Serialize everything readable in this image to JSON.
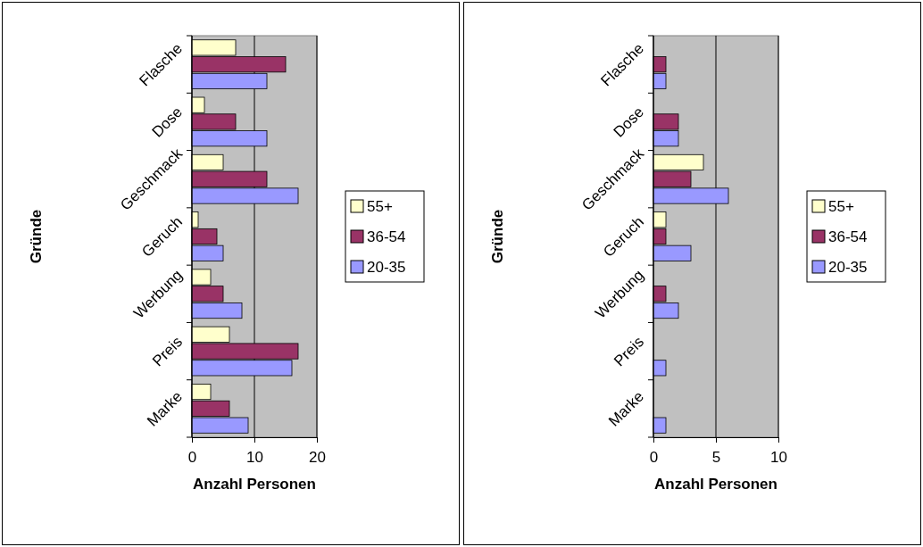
{
  "chart_data": [
    {
      "type": "bar",
      "orientation": "horizontal",
      "xlabel": "Anzahl Personen",
      "ylabel": "Gründe",
      "categories": [
        "Flasche",
        "Dose",
        "Geschmack",
        "Geruch",
        "Werbung",
        "Preis",
        "Marke"
      ],
      "series": [
        {
          "name": "20-35",
          "color": "#9999ff",
          "values": [
            12,
            12,
            17,
            5,
            8,
            16,
            9
          ]
        },
        {
          "name": "36-54",
          "color": "#993366",
          "values": [
            15,
            7,
            12,
            4,
            5,
            17,
            6
          ]
        },
        {
          "name": "55+",
          "color": "#ffffcc",
          "values": [
            7,
            2,
            5,
            1,
            3,
            6,
            3
          ]
        }
      ],
      "xlim": [
        0,
        20
      ],
      "xticks": [
        0,
        10,
        20
      ],
      "grid": "x",
      "legend": "right"
    },
    {
      "type": "bar",
      "orientation": "horizontal",
      "xlabel": "Anzahl Personen",
      "ylabel": "Gründe",
      "categories": [
        "Flasche",
        "Dose",
        "Geschmack",
        "Geruch",
        "Werbung",
        "Preis",
        "Marke"
      ],
      "series": [
        {
          "name": "20-35",
          "color": "#9999ff",
          "values": [
            1,
            2,
            6,
            3,
            2,
            1,
            1
          ]
        },
        {
          "name": "36-54",
          "color": "#993366",
          "values": [
            1,
            2,
            3,
            1,
            1,
            0,
            0
          ]
        },
        {
          "name": "55+",
          "color": "#ffffcc",
          "values": [
            0,
            0,
            4,
            1,
            0,
            0,
            0
          ]
        }
      ],
      "xlim": [
        0,
        10
      ],
      "xticks": [
        0,
        5,
        10
      ],
      "grid": "x",
      "legend": "right"
    }
  ]
}
